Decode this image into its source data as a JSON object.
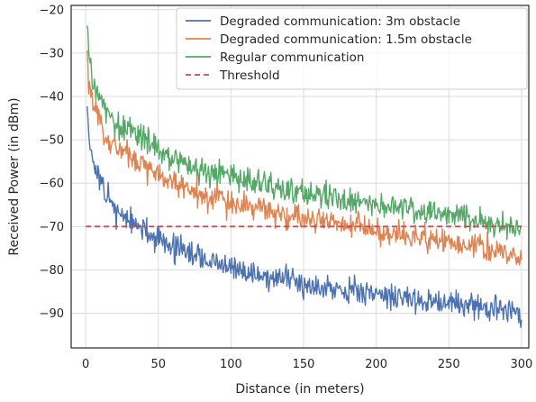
{
  "chart_data": {
    "type": "line",
    "xlabel": "Distance (in meters)",
    "ylabel": "Received Power (in dBm)",
    "xlim": [
      -10,
      305
    ],
    "ylim": [
      -98,
      -19
    ],
    "x_ticks": [
      0,
      50,
      100,
      150,
      200,
      250,
      300
    ],
    "y_ticks": [
      -20,
      -30,
      -40,
      -50,
      -60,
      -70,
      -80,
      -90
    ],
    "x_tick_labels": [
      "0",
      "50",
      "100",
      "150",
      "200",
      "250",
      "300"
    ],
    "y_tick_labels": [
      "−20",
      "−30",
      "−40",
      "−50",
      "−60",
      "−70",
      "−80",
      "−90"
    ],
    "grid": true,
    "legend_position": "top-right",
    "series": [
      {
        "name": "Degraded communication: 3m obstacle",
        "color": "#4c72b0",
        "style": "solid",
        "x": [
          1,
          2,
          3,
          5,
          7,
          10,
          13,
          16,
          20,
          25,
          30,
          35,
          40,
          50,
          60,
          70,
          80,
          90,
          100,
          110,
          120,
          130,
          140,
          150,
          160,
          170,
          180,
          190,
          200,
          210,
          220,
          230,
          240,
          250,
          260,
          270,
          280,
          290,
          300
        ],
        "y": [
          -40,
          -48,
          -51,
          -54,
          -58,
          -60,
          -62,
          -64,
          -66,
          -67,
          -69,
          -70,
          -71,
          -73,
          -74.5,
          -76,
          -77.5,
          -78.5,
          -80,
          -80.5,
          -81,
          -82,
          -82.5,
          -83,
          -83.5,
          -84,
          -84.5,
          -85,
          -85.5,
          -86,
          -86.5,
          -87,
          -87,
          -87.5,
          -88,
          -88.5,
          -89,
          -89.5,
          -90
        ]
      },
      {
        "name": "Degraded communication: 1.5m obstacle",
        "color": "#dd8452",
        "style": "solid",
        "x": [
          1,
          2,
          3,
          5,
          7,
          10,
          13,
          16,
          20,
          25,
          30,
          35,
          40,
          50,
          60,
          70,
          80,
          90,
          100,
          110,
          120,
          130,
          140,
          150,
          160,
          170,
          180,
          190,
          200,
          210,
          220,
          230,
          240,
          250,
          260,
          270,
          280,
          290,
          300
        ],
        "y": [
          -29,
          -36,
          -39,
          -42,
          -44,
          -46,
          -48,
          -50,
          -51,
          -52.5,
          -54,
          -55,
          -56,
          -58,
          -59.5,
          -61,
          -62.5,
          -63.5,
          -65,
          -65.5,
          -66,
          -67,
          -67.5,
          -68,
          -68.5,
          -69,
          -69.5,
          -70,
          -71,
          -71.5,
          -72,
          -72.5,
          -73,
          -73.5,
          -74,
          -74.5,
          -75,
          -76,
          -77
        ]
      },
      {
        "name": "Regular communication",
        "color": "#55a868",
        "style": "solid",
        "x": [
          1,
          2,
          3,
          5,
          7,
          10,
          13,
          16,
          20,
          25,
          30,
          35,
          40,
          50,
          60,
          70,
          80,
          90,
          100,
          110,
          120,
          130,
          140,
          150,
          160,
          170,
          180,
          190,
          200,
          210,
          220,
          230,
          240,
          250,
          260,
          270,
          280,
          290,
          300
        ],
        "y": [
          -22,
          -29,
          -33,
          -37,
          -39,
          -41,
          -43,
          -44,
          -46,
          -47,
          -48,
          -49,
          -50,
          -52,
          -53.5,
          -55,
          -56.5,
          -57.5,
          -58.5,
          -59.5,
          -60,
          -61,
          -61.5,
          -62,
          -62.5,
          -63,
          -64,
          -64.5,
          -65,
          -65.5,
          -66,
          -66.5,
          -67,
          -67.5,
          -68,
          -68.5,
          -69,
          -69.5,
          -70
        ]
      },
      {
        "name": "Threshold",
        "color": "#c44e52",
        "style": "dashed",
        "x": [
          0,
          300
        ],
        "y": [
          -70,
          -70
        ]
      }
    ],
    "noise_amplitude": [
      2.2,
      2.2,
      2.2,
      0
    ]
  }
}
